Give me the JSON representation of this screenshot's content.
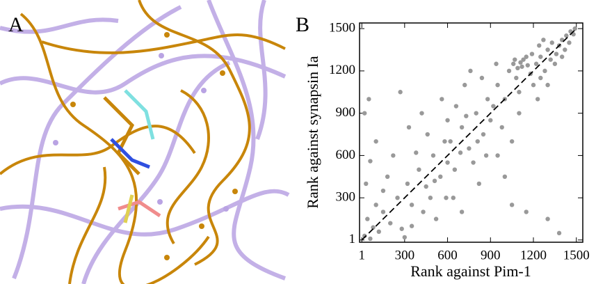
{
  "panels": [
    {
      "label": "A"
    }
  ],
  "chart_data": {
    "type": "scatter",
    "panel_label": "B",
    "x_label": "Rank against Pim-1",
    "y_label": "Rank against synapsin Ia",
    "xlim": [
      -15,
      1545
    ],
    "ylim": [
      -15,
      1540
    ],
    "xticks": [
      1,
      300,
      600,
      900,
      1200,
      1500
    ],
    "yticks": [
      1,
      300,
      600,
      900,
      1200,
      1500
    ],
    "color": "#999999",
    "reference_line": {
      "x": [
        1,
        1500
      ],
      "y": [
        1,
        1500
      ],
      "color": "#000000",
      "dashed": true
    },
    "x": [
      20,
      40,
      60,
      80,
      100,
      120,
      150,
      30,
      200,
      250,
      180,
      60,
      100,
      20,
      50,
      280,
      300,
      220,
      150,
      270,
      320,
      350,
      400,
      450,
      500,
      550,
      580,
      330,
      420,
      480,
      520,
      600,
      380,
      460,
      560,
      600,
      350,
      430,
      510,
      590,
      620,
      650,
      700,
      750,
      800,
      850,
      880,
      660,
      720,
      780,
      820,
      900,
      640,
      700,
      760,
      840,
      870,
      690,
      730,
      810,
      920,
      950,
      980,
      1000,
      1030,
      1060,
      1080,
      1100,
      1120,
      1150,
      1180,
      1200,
      950,
      1000,
      1050,
      1100,
      1130,
      1160,
      940,
      1190,
      1070,
      1090,
      1110,
      1220,
      1250,
      1280,
      1300,
      1330,
      1360,
      1400,
      1430,
      1460,
      1490,
      1250,
      1300,
      1350,
      1380,
      1420,
      1450,
      1480,
      1240,
      1270,
      1230,
      1300,
      1380,
      1150,
      1050,
      1320,
      1400
    ],
    "values": [
      30,
      150,
      10,
      90,
      250,
      60,
      200,
      400,
      120,
      300,
      450,
      560,
      700,
      900,
      1000,
      80,
      20,
      600,
      350,
      1050,
      400,
      250,
      500,
      380,
      600,
      450,
      700,
      800,
      900,
      300,
      150,
      550,
      620,
      750,
      1000,
      850,
      100,
      200,
      420,
      300,
      700,
      500,
      800,
      650,
      900,
      750,
      1000,
      950,
      1100,
      550,
      400,
      850,
      300,
      200,
      1200,
      1150,
      600,
      620,
      880,
      700,
      950,
      1100,
      800,
      1000,
      1200,
      1250,
      1150,
      1050,
      1230,
      1300,
      1180,
      1100,
      600,
      450,
      700,
      900,
      1280,
      1240,
      1250,
      1320,
      1280,
      1220,
      1260,
      1250,
      1300,
      1200,
      1350,
      1400,
      1320,
      1420,
      1450,
      1480,
      1500,
      1150,
      1100,
      1250,
      1380,
      1350,
      1400,
      1460,
      1380,
      1420,
      1000,
      150,
      50,
      200,
      250,
      1280,
      1300
    ]
  }
}
